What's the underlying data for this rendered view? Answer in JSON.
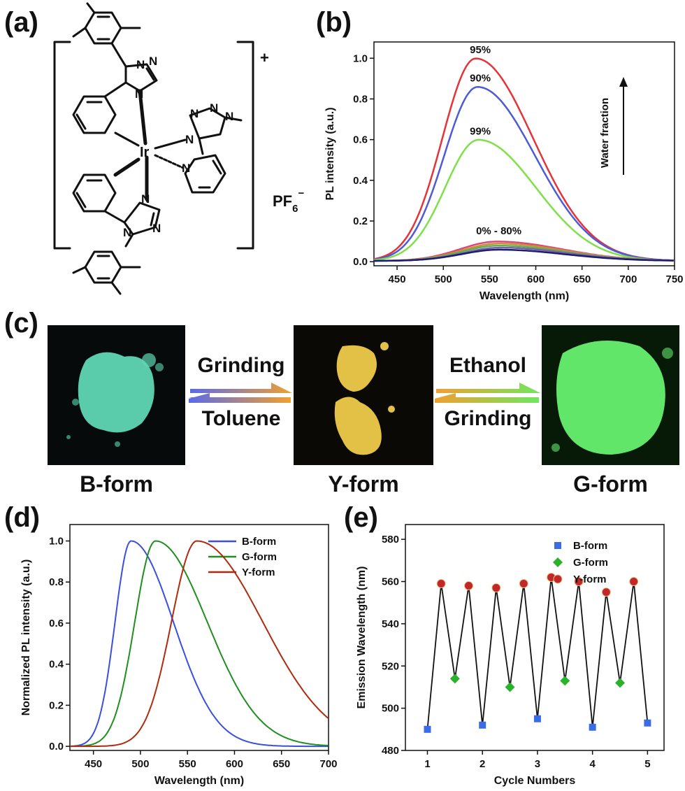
{
  "panels": {
    "a": "(a)",
    "b": "(b)",
    "c": "(c)",
    "d": "(d)",
    "e": "(e)"
  },
  "structure": {
    "charge": "+",
    "counterion": "PF",
    "counterion_sub": "6",
    "counterion_sup": "−",
    "metal": "Ir",
    "n_label": "N",
    "photo_colors": {
      "b_form": "#5fd7b4",
      "y_form": "#e3c046",
      "g_form": "#62e66a"
    }
  },
  "arrows": {
    "left_top": "Grinding",
    "left_bottom": "Toluene",
    "right_top": "Ethanol",
    "right_bottom": "Grinding"
  },
  "photos": {
    "b": "B-form",
    "y": "Y-form",
    "g": "G-form"
  },
  "chart_data": [
    {
      "id": "b",
      "type": "line",
      "title": "",
      "xlabel": "Wavelength (nm)",
      "ylabel": "PL intensity (a.u.)",
      "xlim": [
        425,
        750
      ],
      "ylim": [
        -0.02,
        1.08
      ],
      "xticks": [
        450,
        500,
        550,
        600,
        650,
        700,
        750
      ],
      "yticks": [
        0.0,
        0.2,
        0.4,
        0.6,
        0.8,
        1.0
      ],
      "annotation_arrow": "Water fraction",
      "series": [
        {
          "name": "95%",
          "color": "#e5333a",
          "peak_x": 535,
          "peak_y": 0.995
        },
        {
          "name": "90%",
          "color": "#4d5bd6",
          "peak_x": 537,
          "peak_y": 0.855
        },
        {
          "name": "99%",
          "color": "#7fe04a",
          "peak_x": 538,
          "peak_y": 0.595
        },
        {
          "color": "#e0457a",
          "peak_x": 558,
          "peak_y": 0.095
        },
        {
          "color": "#c98f3a",
          "peak_x": 560,
          "peak_y": 0.085
        },
        {
          "color": "#5fb04f",
          "peak_x": 560,
          "peak_y": 0.075
        },
        {
          "color": "#7a5fb0",
          "peak_x": 562,
          "peak_y": 0.065
        },
        {
          "color": "#1e1e6e",
          "peak_x": 560,
          "peak_y": 0.055
        }
      ],
      "labels": [
        {
          "text": "95%",
          "x": 540,
          "y": 1.025
        },
        {
          "text": "90%",
          "x": 540,
          "y": 0.885
        },
        {
          "text": "99%",
          "x": 540,
          "y": 0.625
        },
        {
          "text": "0% - 80%",
          "x": 560,
          "y": 0.135
        }
      ]
    },
    {
      "id": "d",
      "type": "line",
      "title": "",
      "xlabel": "Wavelength (nm)",
      "ylabel": "Normalized PL intensity (a.u.)",
      "xlim": [
        425,
        700
      ],
      "ylim": [
        -0.02,
        1.08
      ],
      "xticks": [
        450,
        500,
        550,
        600,
        650,
        700
      ],
      "yticks": [
        0.0,
        0.2,
        0.4,
        0.6,
        0.8,
        1.0
      ],
      "legend": "top-right",
      "series": [
        {
          "name": "B-form",
          "color": "#3a4fe0",
          "peak_x": 490,
          "peak_y": 1.0
        },
        {
          "name": "G-form",
          "color": "#1f8f1f",
          "peak_x": 516,
          "peak_y": 1.0
        },
        {
          "name": "Y-form",
          "color": "#b02a0f",
          "peak_x": 560,
          "peak_y": 1.0
        }
      ]
    },
    {
      "id": "e",
      "type": "scatter",
      "title": "",
      "xlabel": "Cycle Numbers",
      "ylabel": "Emission Wavelength (nm)",
      "xlim": [
        0.6,
        5.3
      ],
      "ylim": [
        480,
        587
      ],
      "xticks": [
        1,
        2,
        3,
        4,
        5
      ],
      "yticks": [
        480,
        500,
        520,
        540,
        560,
        580
      ],
      "legend": "top-right",
      "series": [
        {
          "name": "B-form",
          "color": "#3a6be8",
          "marker": "square",
          "points": [
            [
              1,
              490
            ],
            [
              2,
              492
            ],
            [
              3,
              495
            ],
            [
              4,
              491
            ],
            [
              5,
              493
            ]
          ]
        },
        {
          "name": "G-form",
          "color": "#2bb22b",
          "marker": "diamond",
          "points": [
            [
              1.5,
              514
            ],
            [
              2.5,
              510
            ],
            [
              3.5,
              513
            ],
            [
              4.5,
              512
            ]
          ]
        },
        {
          "name": "Y-form",
          "color": "#c0282a",
          "marker": "circle",
          "points": [
            [
              1.25,
              559
            ],
            [
              1.75,
              558
            ],
            [
              2.25,
              557
            ],
            [
              2.75,
              559
            ],
            [
              3.25,
              562
            ],
            [
              3.75,
              560
            ],
            [
              4.25,
              555
            ],
            [
              4.75,
              560
            ]
          ]
        }
      ],
      "connect_order": [
        [
          1,
          490
        ],
        [
          1.25,
          559
        ],
        [
          1.5,
          514
        ],
        [
          1.75,
          558
        ],
        [
          2,
          492
        ],
        [
          2.25,
          557
        ],
        [
          2.5,
          510
        ],
        [
          2.75,
          559
        ],
        [
          3,
          495
        ],
        [
          3.25,
          562
        ],
        [
          3.5,
          513
        ],
        [
          3.75,
          560
        ],
        [
          4,
          491
        ],
        [
          4.25,
          555
        ],
        [
          4.5,
          512
        ],
        [
          4.75,
          560
        ],
        [
          5,
          493
        ]
      ]
    }
  ]
}
